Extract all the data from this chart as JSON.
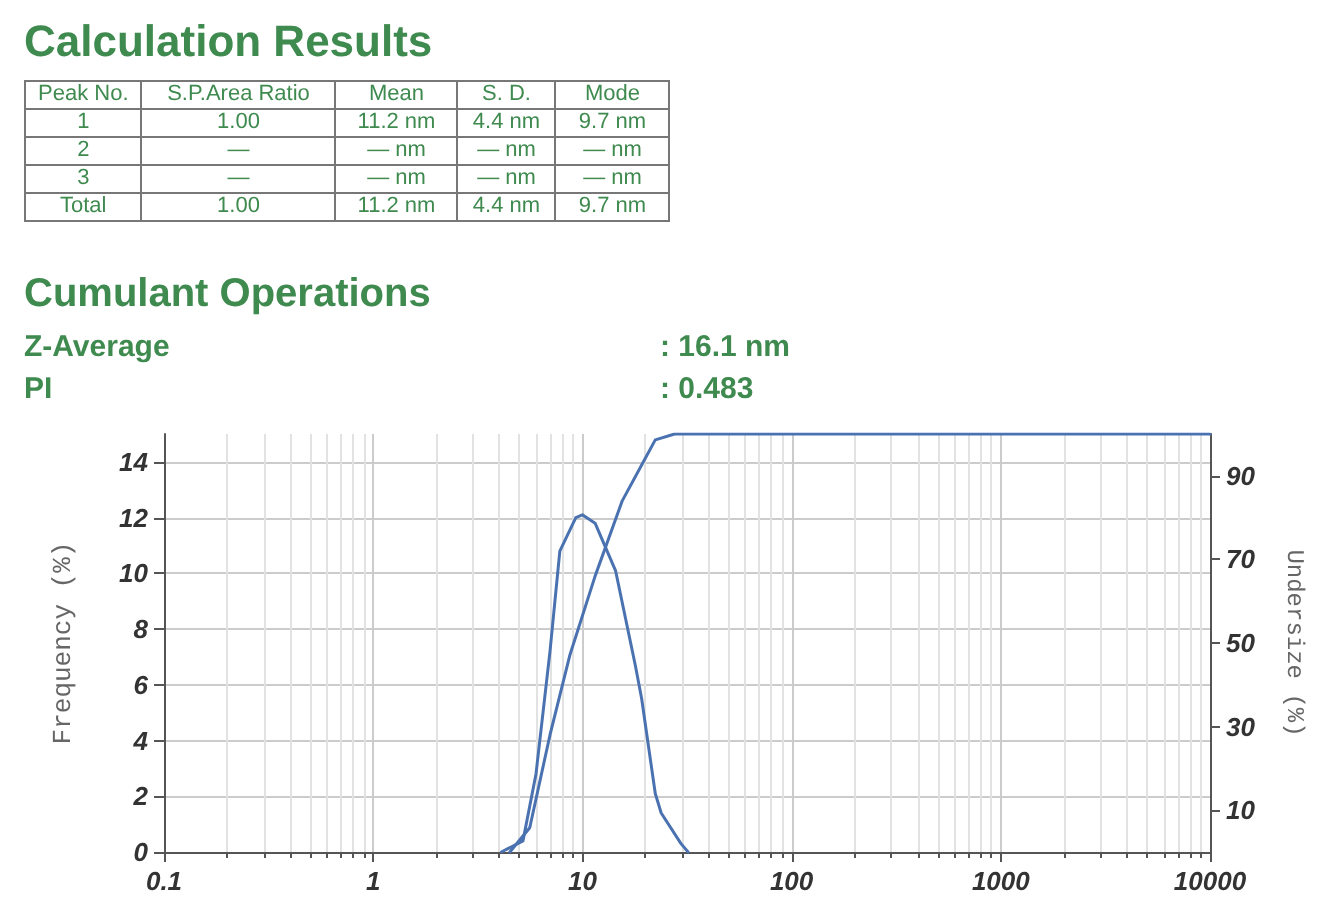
{
  "chart_data": {
    "type": "line",
    "title": "Calculation Results",
    "subtitle": "Cumulant Operations",
    "annotations": [
      "Peak No.",
      "S.P.Area Ratio",
      "Mean",
      "S. D.",
      "Mode",
      "1",
      "1.00",
      "11.2 nm",
      "4.4 nm",
      "9.7 nm",
      "2",
      "—",
      "— nm",
      "— nm",
      "— nm",
      "3",
      "—",
      "— nm",
      "— nm",
      "— nm",
      "Total",
      "1.00",
      "11.2 nm",
      "4.4 nm",
      "9.7 nm",
      "Z-Average",
      ": 16.1 nm",
      "PI",
      ": 0.483"
    ],
    "ylabel": "Frequency (%)",
    "y2label": "Undersize (%)",
    "log": "x",
    "grid": true,
    "marker": "none",
    "line_style": "solid",
    "xlim": [
      0.1,
      10000
    ],
    "xticks": [
      0.1,
      1,
      10,
      100,
      1000,
      10000
    ],
    "ylim": [
      0,
      15
    ],
    "yticks": [
      0,
      2,
      4,
      6,
      8,
      10,
      12,
      14
    ],
    "y2lim": [
      0,
      100
    ],
    "y2ticks": [
      10,
      30,
      50,
      70,
      90
    ],
    "series": [
      {
        "color": "#4a72b0",
        "x": [
          4.1,
          5.2,
          6.0,
          7.0,
          7.8,
          9.3,
          10,
          11.5,
          14.4,
          17.9,
          19.2,
          22.3,
          23.8,
          29.6,
          32
        ],
        "values": [
          0,
          0.4,
          2.8,
          7.2,
          10.8,
          12.0,
          12.1,
          11.8,
          10.1,
          6.7,
          5.5,
          2.1,
          1.4,
          0.3,
          0
        ]
      },
      {
        "color": "#4a72b0",
        "axis": "y2",
        "x": [
          4.5,
          5.6,
          7.0,
          8.7,
          11.5,
          15.5,
          19.4,
          22.3,
          27.6,
          10000
        ],
        "values": [
          0,
          5.8,
          28,
          47,
          66,
          84,
          93,
          98.6,
          100,
          100
        ]
      }
    ]
  }
}
